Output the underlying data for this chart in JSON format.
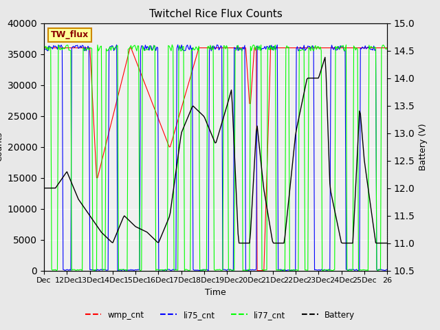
{
  "title": "Twitchel Rice Flux Counts",
  "xlabel": "Time",
  "ylabel_left": "Counts",
  "ylabel_right": "Battery (V)",
  "ylim_left": [
    0,
    40000
  ],
  "ylim_right": [
    10.5,
    15.0
  ],
  "yticks_left": [
    0,
    5000,
    10000,
    15000,
    20000,
    25000,
    30000,
    35000,
    40000
  ],
  "yticks_right": [
    10.5,
    11.0,
    11.5,
    12.0,
    12.5,
    13.0,
    13.5,
    14.0,
    14.5,
    15.0
  ],
  "bg_color": "#e8e8e8",
  "plot_bg_color": "#f0f0f0",
  "box_color": "#ffff99",
  "box_edge_color": "#cc8800",
  "box_text": "TW_flux",
  "legend_labels": [
    "wmp_cnt",
    "li75_cnt",
    "li77_cnt",
    "Battery"
  ],
  "legend_colors": [
    "red",
    "blue",
    "lime",
    "black"
  ],
  "wmp_color": "red",
  "li75_color": "blue",
  "li77_color": "lime",
  "battery_color": "black",
  "xtick_labels": [
    "Dec",
    "12Dec",
    "13Dec",
    "14Dec",
    "15Dec",
    "16Dec",
    "17Dec",
    "18Dec",
    "19Dec",
    "20Dec",
    "21Dec",
    "22Dec",
    "23Dec",
    "24Dec",
    "25Dec",
    "26"
  ],
  "xtick_positions": [
    0,
    1,
    2,
    3,
    4,
    5,
    6,
    7,
    8,
    9,
    10,
    11,
    12,
    13,
    14,
    15
  ]
}
